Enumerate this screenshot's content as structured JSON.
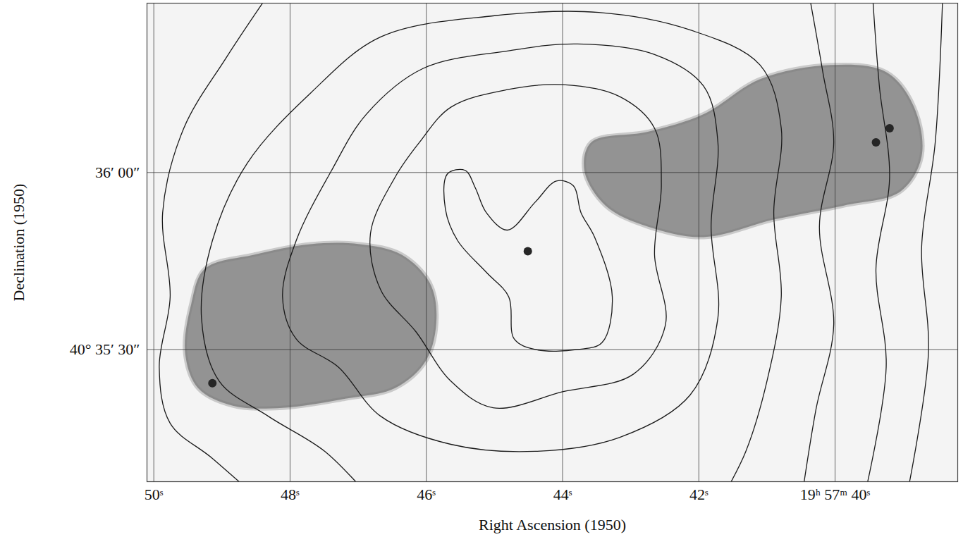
{
  "chart_data": {
    "type": "contour",
    "x_label": "Right Ascension (1950)",
    "y_label": "Declination (1950)",
    "xlim": [
      50.1,
      38.2
    ],
    "ylim": [
      7.6,
      88.7
    ],
    "xticks": [
      {
        "value": 50,
        "label": "50ˢ"
      },
      {
        "value": 48,
        "label": "48ˢ"
      },
      {
        "value": 46,
        "label": "46ˢ"
      },
      {
        "value": 44,
        "label": "44ˢ"
      },
      {
        "value": 42,
        "label": "42ˢ"
      },
      {
        "value": 40,
        "label": "19ʰ 57ᵐ 40ˢ"
      }
    ],
    "yticks": [
      {
        "value": 30,
        "label": "40° 35′ 30″"
      },
      {
        "value": 60,
        "label": "36′ 00″"
      }
    ],
    "grid": true,
    "lobes": {
      "color": "#7a7a7a",
      "shapes": [
        [
          [
            49.25,
            43.69
          ],
          [
            48.53,
            46.07
          ],
          [
            47.7,
            47.86
          ],
          [
            46.98,
            47.86
          ],
          [
            46.36,
            46.07
          ],
          [
            45.95,
            41.31
          ],
          [
            45.85,
            35.36
          ],
          [
            46.0,
            28.21
          ],
          [
            46.46,
            23.45
          ],
          [
            47.19,
            21.67
          ],
          [
            48.11,
            20.12
          ],
          [
            48.84,
            20.48
          ],
          [
            49.35,
            23.45
          ],
          [
            49.54,
            29.4
          ],
          [
            49.45,
            37.74
          ]
        ],
        [
          [
            43.58,
            65.12
          ],
          [
            42.75,
            66.9
          ],
          [
            41.93,
            69.88
          ],
          [
            41.1,
            75.83
          ],
          [
            40.07,
            78.21
          ],
          [
            39.25,
            77.02
          ],
          [
            38.84,
            71.07
          ],
          [
            38.73,
            62.74
          ],
          [
            39.04,
            56.79
          ],
          [
            39.87,
            54.4
          ],
          [
            40.9,
            52.02
          ],
          [
            41.93,
            49.05
          ],
          [
            42.75,
            50.83
          ],
          [
            43.37,
            54.4
          ],
          [
            43.68,
            60.36
          ]
        ]
      ]
    },
    "hotspots": {
      "color": "#262626",
      "points": [
        [
          49.14,
          24.29
        ],
        [
          39.2,
          67.5
        ],
        [
          39.4,
          65.12
        ],
        [
          44.51,
          46.67
        ]
      ]
    },
    "contours": {
      "color": "#1a1a1a",
      "closed": [
        [
          [
            45.69,
            59.76
          ],
          [
            45.43,
            60.36
          ],
          [
            45.28,
            57.38
          ],
          [
            45.12,
            53.21
          ],
          [
            44.81,
            50.24
          ],
          [
            44.4,
            55.0
          ],
          [
            44.09,
            58.57
          ],
          [
            43.84,
            57.74
          ],
          [
            43.73,
            53.21
          ],
          [
            43.53,
            49.05
          ],
          [
            43.27,
            38.93
          ],
          [
            43.42,
            31.19
          ],
          [
            43.78,
            30.0
          ],
          [
            44.4,
            30.0
          ],
          [
            44.71,
            31.79
          ],
          [
            44.79,
            38.93
          ],
          [
            45.12,
            43.1
          ],
          [
            45.54,
            48.45
          ],
          [
            45.72,
            53.81
          ]
        ],
        [
          [
            46.1,
            65.12
          ],
          [
            45.64,
            71.07
          ],
          [
            44.81,
            74.05
          ],
          [
            43.99,
            74.88
          ],
          [
            43.16,
            72.86
          ],
          [
            42.65,
            67.5
          ],
          [
            42.55,
            57.98
          ],
          [
            42.65,
            46.07
          ],
          [
            42.49,
            34.17
          ],
          [
            42.96,
            25.83
          ],
          [
            43.99,
            22.86
          ],
          [
            45.02,
            20.12
          ],
          [
            45.64,
            24.64
          ],
          [
            46.15,
            32.98
          ],
          [
            46.67,
            40.12
          ],
          [
            46.82,
            49.64
          ],
          [
            46.46,
            59.17
          ]
        ],
        [
          [
            46.88,
            69.88
          ],
          [
            46.05,
            77.62
          ],
          [
            44.81,
            80.6
          ],
          [
            43.78,
            81.79
          ],
          [
            42.65,
            80.0
          ],
          [
            41.93,
            74.64
          ],
          [
            41.72,
            65.12
          ],
          [
            41.82,
            50.83
          ],
          [
            41.72,
            35.36
          ],
          [
            42.13,
            22.26
          ],
          [
            43.16,
            15.12
          ],
          [
            44.4,
            12.74
          ],
          [
            45.64,
            13.93
          ],
          [
            46.67,
            18.69
          ],
          [
            47.29,
            27.02
          ],
          [
            47.91,
            31.79
          ],
          [
            48.11,
            38.93
          ],
          [
            47.91,
            48.45
          ],
          [
            47.39,
            60.36
          ]
        ]
      ],
      "open": [
        [
          [
            46.88,
            5.6
          ],
          [
            47.49,
            12.74
          ],
          [
            48.32,
            18.69
          ],
          [
            49.04,
            24.64
          ],
          [
            49.3,
            35.36
          ],
          [
            49.14,
            48.45
          ],
          [
            48.63,
            61.55
          ],
          [
            47.7,
            73.45
          ],
          [
            46.67,
            82.98
          ],
          [
            45.02,
            86.55
          ],
          [
            43.47,
            87.14
          ],
          [
            42.13,
            84.17
          ],
          [
            41.1,
            78.21
          ],
          [
            40.79,
            67.5
          ],
          [
            40.9,
            53.21
          ],
          [
            40.79,
            38.93
          ],
          [
            41.0,
            24.64
          ],
          [
            41.31,
            12.74
          ],
          [
            41.62,
            5.6
          ]
        ],
        [
          [
            48.32,
            3.21
          ],
          [
            49.14,
            11.55
          ],
          [
            49.76,
            17.5
          ],
          [
            49.92,
            27.02
          ],
          [
            49.76,
            38.93
          ],
          [
            49.87,
            53.21
          ],
          [
            49.56,
            67.5
          ],
          [
            48.94,
            79.4
          ],
          [
            48.32,
            90.12
          ]
        ],
        [
          [
            40.38,
            90.12
          ],
          [
            40.18,
            77.02
          ],
          [
            40.02,
            65.12
          ],
          [
            40.23,
            50.83
          ],
          [
            40.02,
            34.17
          ],
          [
            40.28,
            19.88
          ],
          [
            40.48,
            5.6
          ]
        ],
        [
          [
            39.45,
            90.12
          ],
          [
            39.35,
            74.64
          ],
          [
            39.2,
            59.17
          ],
          [
            39.4,
            43.69
          ],
          [
            39.25,
            27.02
          ],
          [
            39.56,
            5.6
          ]
        ],
        [
          [
            38.42,
            90.12
          ],
          [
            38.53,
            65.12
          ],
          [
            38.73,
            47.26
          ],
          [
            38.63,
            29.4
          ],
          [
            38.94,
            5.6
          ]
        ]
      ]
    }
  }
}
